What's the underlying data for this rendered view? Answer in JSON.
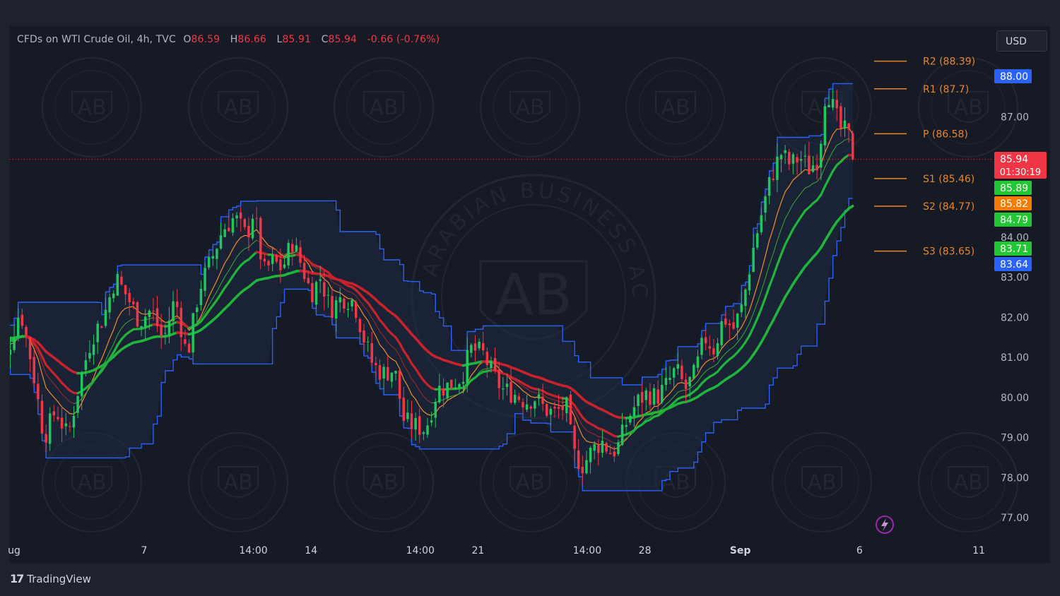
{
  "header": {
    "symbol": "CFDs on WTI Crude Oil, 4h, TVC",
    "open_label": "O",
    "open": "86.59",
    "high_label": "H",
    "high": "86.66",
    "low_label": "L",
    "low": "85.91",
    "close_label": "C",
    "close": "85.94",
    "change": "-0.66 (-0.76%)"
  },
  "currency_button": "USD",
  "footer": {
    "brand": "TradingView"
  },
  "watermark_text": "ARABIAN BUSINESS ACADEMY",
  "watermark_initials": "AB",
  "colors": {
    "up": "#26a69a",
    "up_bright": "#23c55e",
    "down": "#f23645",
    "channel": "#2962ff",
    "ema_green": "#1fb53a",
    "ema_red": "#c8232c",
    "pivot": "#e8862a",
    "axis_text": "#b2b5be"
  },
  "chart_data": {
    "type": "candlestick",
    "timeframe": "4h",
    "ylim": [
      76.5,
      89.0
    ],
    "y_ticks": [
      "77.00",
      "78.00",
      "79.00",
      "80.00",
      "81.00",
      "82.00",
      "83.00",
      "84.00",
      "87.00"
    ],
    "x_ticks": [
      {
        "label": "ug",
        "day": 1.0
      },
      {
        "label": "7",
        "day": 7.0
      },
      {
        "label": "14:00",
        "day": 11.58
      },
      {
        "label": "14",
        "day": 14.0
      },
      {
        "label": "14:00",
        "day": 18.58
      },
      {
        "label": "21",
        "day": 21.0
      },
      {
        "label": "14:00",
        "day": 25.58
      },
      {
        "label": "28",
        "day": 28.0
      },
      {
        "label": "Sep",
        "day": 32.0
      },
      {
        "label": "6",
        "day": 37.0
      },
      {
        "label": "11",
        "day": 42.0
      }
    ],
    "pivots": [
      {
        "label": "R2 (88.39)",
        "value": 88.39
      },
      {
        "label": "R1 (87.7)",
        "value": 87.7
      },
      {
        "label": "P (86.58)",
        "value": 86.58
      },
      {
        "label": "S1 (85.46)",
        "value": 85.46
      },
      {
        "label": "S2 (84.77)",
        "value": 84.77
      },
      {
        "label": "S3 (83.65)",
        "value": 83.65
      }
    ],
    "price_tags": [
      {
        "text": "88.00",
        "value": 88.0,
        "color": "#2962ff"
      },
      {
        "text": "85.94",
        "sub": "01:30:19",
        "value": 85.94,
        "color": "#f23645"
      },
      {
        "text": "85.89",
        "value": 85.89,
        "color": "#22c833"
      },
      {
        "text": "85.82",
        "value": 85.82,
        "color": "#f57c00"
      },
      {
        "text": "84.79",
        "value": 84.79,
        "color": "#22c833"
      },
      {
        "text": "83.71",
        "value": 83.71,
        "color": "#22c833"
      },
      {
        "text": "83.64",
        "value": 83.64,
        "color": "#2962ff"
      }
    ],
    "current_price": 85.94,
    "close_path": [
      [
        0.5,
        81.6
      ],
      [
        1.2,
        81.0
      ],
      [
        1.8,
        82.2
      ],
      [
        2.3,
        80.8
      ],
      [
        2.8,
        79.0
      ],
      [
        3.3,
        79.7
      ],
      [
        3.8,
        79.0
      ],
      [
        4.3,
        80.4
      ],
      [
        4.8,
        81.5
      ],
      [
        5.3,
        82.0
      ],
      [
        5.8,
        83.0
      ],
      [
        6.3,
        82.5
      ],
      [
        6.8,
        81.9
      ],
      [
        7.3,
        82.2
      ],
      [
        7.8,
        81.4
      ],
      [
        8.3,
        82.5
      ],
      [
        8.8,
        81.0
      ],
      [
        9.3,
        82.7
      ],
      [
        9.8,
        83.4
      ],
      [
        10.3,
        84.2
      ],
      [
        10.8,
        84.5
      ],
      [
        11.3,
        84.0
      ],
      [
        11.6,
        84.7
      ],
      [
        12.0,
        83.1
      ],
      [
        12.4,
        83.4
      ],
      [
        12.8,
        83.2
      ],
      [
        13.2,
        83.9
      ],
      [
        13.6,
        83.3
      ],
      [
        14.0,
        82.6
      ],
      [
        14.4,
        83.0
      ],
      [
        14.8,
        82.2
      ],
      [
        15.3,
        82.5
      ],
      [
        15.8,
        82.4
      ],
      [
        16.2,
        81.5
      ],
      [
        16.6,
        80.8
      ],
      [
        17.0,
        80.6
      ],
      [
        17.5,
        80.7
      ],
      [
        17.9,
        79.4
      ],
      [
        18.3,
        79.3
      ],
      [
        18.8,
        79.2
      ],
      [
        19.3,
        80.2
      ],
      [
        19.8,
        80.3
      ],
      [
        20.3,
        80.5
      ],
      [
        20.7,
        81.2
      ],
      [
        21.2,
        81.1
      ],
      [
        21.6,
        80.6
      ],
      [
        22.0,
        80.2
      ],
      [
        22.5,
        80.1
      ],
      [
        23.0,
        79.9
      ],
      [
        23.4,
        80.0
      ],
      [
        23.8,
        79.7
      ],
      [
        24.2,
        79.6
      ],
      [
        24.7,
        79.8
      ],
      [
        25.0,
        78.6
      ],
      [
        25.4,
        78.3
      ],
      [
        25.8,
        78.7
      ],
      [
        26.2,
        78.9
      ],
      [
        26.6,
        78.6
      ],
      [
        26.9,
        78.8
      ],
      [
        27.3,
        79.5
      ],
      [
        27.7,
        79.9
      ],
      [
        28.1,
        80.1
      ],
      [
        28.5,
        80.0
      ],
      [
        28.9,
        80.3
      ],
      [
        29.3,
        80.7
      ],
      [
        29.7,
        80.2
      ],
      [
        30.1,
        80.6
      ],
      [
        30.5,
        81.5
      ],
      [
        30.9,
        81.2
      ],
      [
        31.3,
        82.0
      ],
      [
        31.7,
        81.7
      ],
      [
        32.1,
        82.3
      ],
      [
        32.5,
        83.6
      ],
      [
        32.9,
        84.6
      ],
      [
        33.3,
        85.5
      ],
      [
        33.7,
        86.1
      ],
      [
        34.1,
        85.8
      ],
      [
        34.5,
        86.0
      ],
      [
        34.9,
        85.7
      ],
      [
        35.3,
        86.0
      ],
      [
        35.6,
        87.8
      ],
      [
        35.9,
        87.2
      ],
      [
        36.2,
        86.7
      ],
      [
        36.5,
        86.6
      ],
      [
        36.8,
        85.94
      ]
    ],
    "up_color": "#26a69a",
    "down_color": "#f23645"
  }
}
